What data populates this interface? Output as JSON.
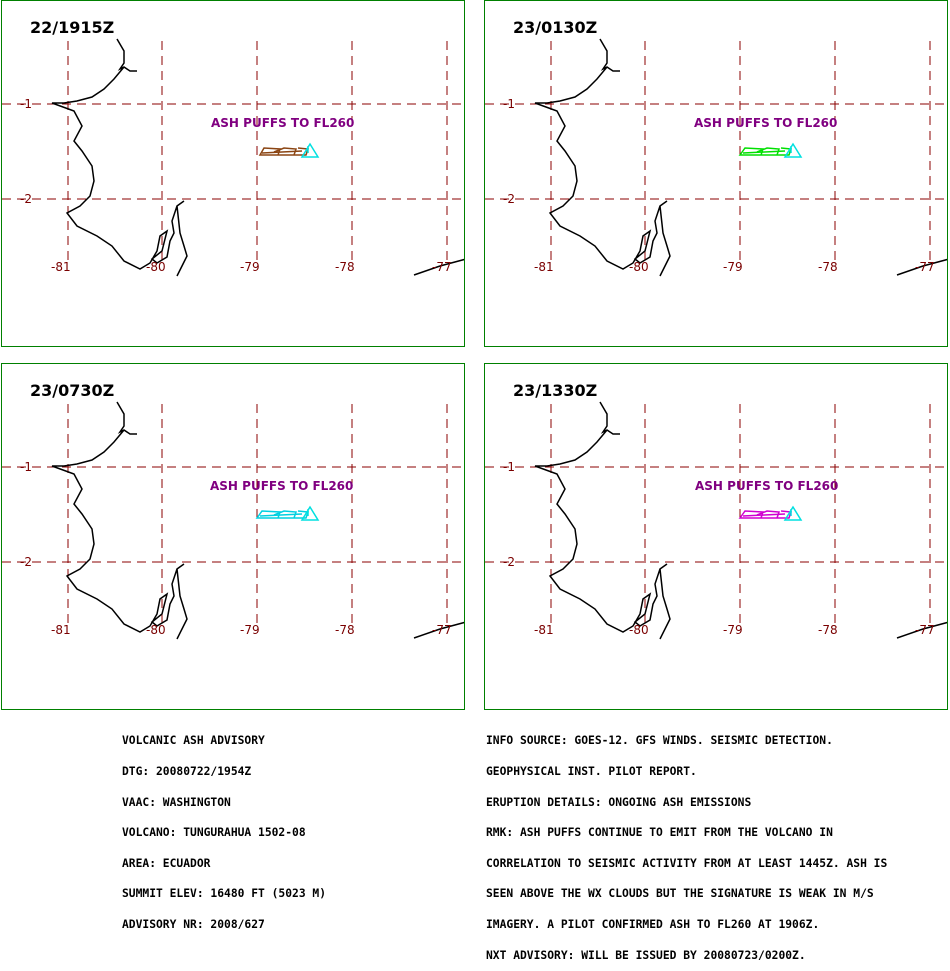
{
  "panels": [
    {
      "time": "22/1915Z",
      "cloud_color": "#8b4513",
      "note": "ASH PUFFS TO FL260"
    },
    {
      "time": "23/0130Z",
      "cloud_color": "#00e000",
      "note": "ASH PUFFS TO FL260"
    },
    {
      "time": "23/0730Z",
      "cloud_color": "#00d0e0",
      "note": "ASH PUFFS TO FL260"
    },
    {
      "time": "23/1330Z",
      "cloud_color": "#d000d0",
      "note": "ASH PUFFS TO FL260"
    }
  ],
  "volcano_marker_color": "#00e0e0",
  "grid_color": "#8b0000",
  "lat_labels": [
    "-1",
    "-2"
  ],
  "lon_labels": [
    "-81",
    "-80",
    "-79",
    "-78",
    "-77"
  ],
  "advisory_left": [
    "VOLCANIC ASH ADVISORY",
    "DTG: 20080722/1954Z",
    "VAAC: WASHINGTON",
    "VOLCANO: TUNGURAHUA 1502-08",
    "AREA: ECUADOR",
    "SUMMIT ELEV: 16480 FT (5023 M)",
    "ADVISORY NR: 2008/627"
  ],
  "advisory_right": [
    "INFO SOURCE: GOES-12. GFS WINDS. SEISMIC DETECTION.",
    "GEOPHYSICAL INST. PILOT REPORT.",
    "ERUPTION DETAILS: ONGOING ASH EMISSIONS",
    "RMK: ASH PUFFS CONTINUE TO EMIT FROM THE VOLCANO IN",
    "CORRELATION TO SEISMIC ACTIVITY FROM AT LEAST 1445Z. ASH IS",
    "SEEN ABOVE THE WX CLOUDS BUT THE SIGNATURE IS WEAK IN M/S",
    "IMAGERY. A PILOT CONFIRMED ASH TO FL260 AT 1906Z.",
    "NXT ADVISORY: WILL BE ISSUED BY 20080723/0200Z."
  ]
}
